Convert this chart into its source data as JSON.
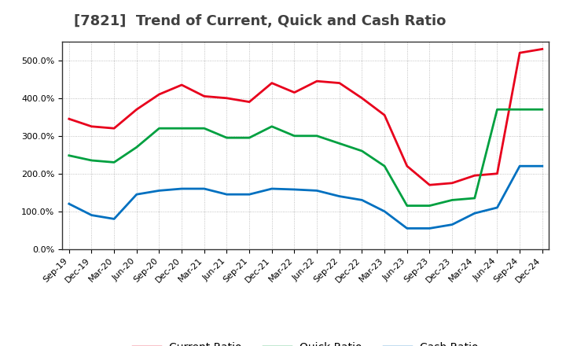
{
  "title": "[7821]  Trend of Current, Quick and Cash Ratio",
  "x_labels": [
    "Sep-19",
    "Dec-19",
    "Mar-20",
    "Jun-20",
    "Sep-20",
    "Dec-20",
    "Mar-21",
    "Jun-21",
    "Sep-21",
    "Dec-21",
    "Mar-22",
    "Jun-22",
    "Sep-22",
    "Dec-22",
    "Mar-23",
    "Jun-23",
    "Sep-23",
    "Dec-23",
    "Mar-24",
    "Jun-24",
    "Sep-24",
    "Dec-24"
  ],
  "current_ratio": [
    345,
    325,
    320,
    370,
    410,
    435,
    405,
    400,
    390,
    440,
    415,
    445,
    440,
    400,
    355,
    220,
    170,
    175,
    195,
    200,
    520,
    530
  ],
  "quick_ratio": [
    248,
    235,
    230,
    270,
    320,
    320,
    320,
    295,
    295,
    325,
    300,
    300,
    280,
    260,
    220,
    115,
    115,
    130,
    135,
    370,
    370,
    370
  ],
  "cash_ratio": [
    120,
    90,
    80,
    145,
    155,
    160,
    160,
    145,
    145,
    160,
    158,
    155,
    140,
    130,
    100,
    55,
    55,
    65,
    95,
    110,
    220,
    220
  ],
  "current_color": "#e8001c",
  "quick_color": "#00a040",
  "cash_color": "#0070c0",
  "ylim": [
    0,
    550
  ],
  "yticks": [
    0,
    100,
    200,
    300,
    400,
    500
  ],
  "background_color": "#ffffff",
  "grid_color": "#b0b0b0",
  "title_fontsize": 13,
  "title_color": "#404040",
  "legend_fontsize": 10,
  "tick_fontsize": 8,
  "linewidth": 2.0
}
